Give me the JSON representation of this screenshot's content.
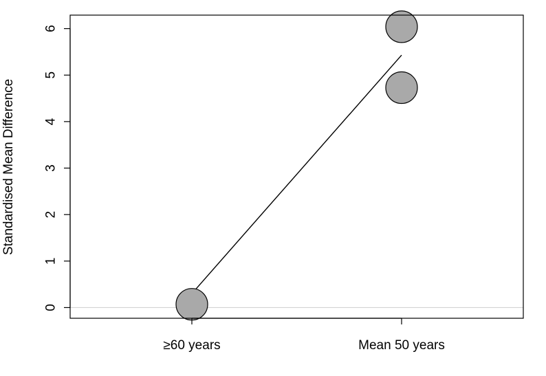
{
  "chart_data": {
    "type": "scatter",
    "ylabel": "Standardised Mean Difference",
    "xlabel": "",
    "categories": [
      "≥60 years",
      "Mean 50 years"
    ],
    "y_ticks": [
      "0",
      "1",
      "2",
      "3",
      "4",
      "5",
      "6"
    ],
    "ylim": [
      -0.23,
      6.29
    ],
    "points": [
      {
        "category": "≥60 years",
        "y": 0.07
      },
      {
        "category": "Mean 50 years",
        "y": 6.04
      },
      {
        "category": "Mean 50 years",
        "y": 4.73
      }
    ],
    "regression_line": {
      "y_start": 0.3,
      "y_end": 5.43
    },
    "reference_line_y": 0,
    "colors": {
      "point_fill": "#a9a9a9",
      "point_stroke": "#000000",
      "reference_line": "#d3d3d3",
      "line": "#000000"
    }
  }
}
